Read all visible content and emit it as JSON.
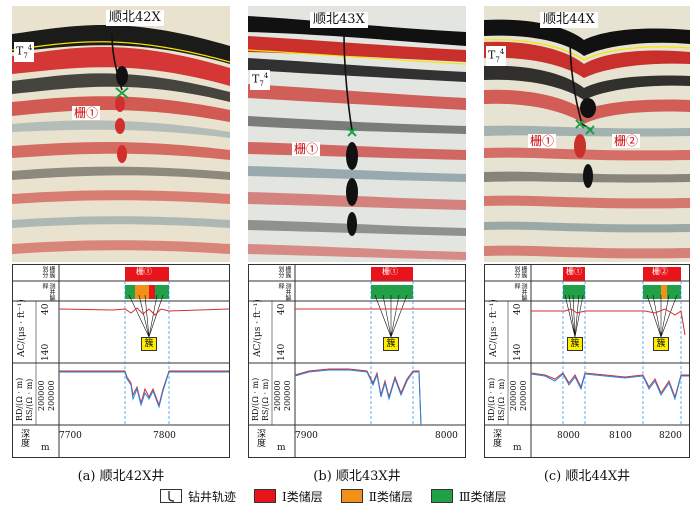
{
  "panels": [
    {
      "well": "顺北42X",
      "caption": "(a)  顺北42X井",
      "t7_base": "T",
      "t7_sub": "7",
      "t7_sup": "4",
      "zha_labels": [
        "栅①"
      ],
      "zha_zone": "栅①",
      "cu": "簇",
      "depth_ticks": [
        "7700",
        "7800"
      ],
      "ac_min": "140",
      "ac_max": "40",
      "rd_min": "2",
      "rd_max": "200000",
      "rs_min": "2",
      "rs_max": "200000"
    },
    {
      "well": "顺北43X",
      "caption": "(b)  顺北43X井",
      "t7_base": "T",
      "t7_sub": "7",
      "t7_sup": "4",
      "zha_labels": [
        "栅①"
      ],
      "zha_zone": "栅①",
      "cu": "簇",
      "depth_ticks": [
        "7900",
        "8000"
      ],
      "ac_min": "140",
      "ac_max": "40",
      "rd_min": "2",
      "rd_max": "200000",
      "rs_min": "2",
      "rs_max": "200000"
    },
    {
      "well": "顺北44X",
      "caption": "(c)  顺北44X井",
      "t7_base": "T",
      "t7_sub": "7",
      "t7_sup": "4",
      "zha_labels": [
        "栅①",
        "栅②"
      ],
      "zha_zone": "栅①",
      "zha_zone2": "栅②",
      "cu": "簇",
      "depth_ticks": [
        "8000",
        "8100",
        "8200"
      ],
      "ac_min": "140",
      "ac_max": "40",
      "rd_min": "2",
      "rd_max": "200000",
      "rs_min": "2",
      "rs_max": "200000"
    }
  ],
  "track_labels": {
    "zha_division": "栅簇划分",
    "log_interp": "测井解释",
    "ac": "AC/(μs · ft⁻¹)",
    "rd": "RD/(Ω · m)",
    "rs": "RS/(Ω · m)",
    "depth": "深度",
    "depth_unit": "m"
  },
  "legend": [
    {
      "label": "钻井轨迹",
      "kind": "trajectory"
    },
    {
      "label": "Ⅰ类储层",
      "color": "#e8141b"
    },
    {
      "label": "Ⅱ类储层",
      "color": "#f39019"
    },
    {
      "label": "Ⅲ类储层",
      "color": "#22a047"
    }
  ],
  "colors": {
    "class1": "#e8141b",
    "class2": "#f39019",
    "class3": "#22a047",
    "ac_curve": "#d32f2f",
    "rs_curve": "#1e88e5",
    "horizon": "#f5e400",
    "cu_box": "#ffee00"
  }
}
